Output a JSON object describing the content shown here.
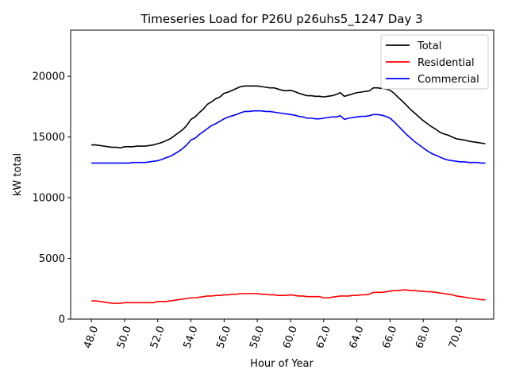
{
  "chart_data": {
    "type": "line",
    "title": "Timeseries Load for P26U p26uhs5_1247  Day 3",
    "xlabel": "Hour of Year",
    "ylabel": "kW total",
    "xlim": [
      46.75,
      72.25
    ],
    "ylim": [
      0,
      23800
    ],
    "xticks": [
      48,
      50,
      52,
      54,
      56,
      58,
      60,
      62,
      64,
      66,
      68,
      70
    ],
    "xtick_labels": [
      "48.0",
      "50.0",
      "52.0",
      "54.0",
      "56.0",
      "58.0",
      "60.0",
      "62.0",
      "64.0",
      "66.0",
      "68.0",
      "70.0"
    ],
    "yticks": [
      0,
      5000,
      10000,
      15000,
      20000
    ],
    "ytick_labels": [
      "0",
      "5000",
      "10000",
      "15000",
      "20000"
    ],
    "legend_position": "top-right",
    "x": [
      48.0,
      48.25,
      48.5,
      48.75,
      49.0,
      49.25,
      49.5,
      49.75,
      50.0,
      50.25,
      50.5,
      50.75,
      51.0,
      51.25,
      51.5,
      51.75,
      52.0,
      52.25,
      52.5,
      52.75,
      53.0,
      53.25,
      53.5,
      53.75,
      54.0,
      54.25,
      54.5,
      54.75,
      55.0,
      55.25,
      55.5,
      55.75,
      56.0,
      56.25,
      56.5,
      56.75,
      57.0,
      57.25,
      57.5,
      57.75,
      58.0,
      58.25,
      58.5,
      58.75,
      59.0,
      59.25,
      59.5,
      59.75,
      60.0,
      60.25,
      60.5,
      60.75,
      61.0,
      61.25,
      61.5,
      61.75,
      62.0,
      62.25,
      62.5,
      62.75,
      63.0,
      63.25,
      63.5,
      63.75,
      64.0,
      64.25,
      64.5,
      64.75,
      65.0,
      65.25,
      65.5,
      65.75,
      66.0,
      66.25,
      66.5,
      66.75,
      67.0,
      67.25,
      67.5,
      67.75,
      68.0,
      68.25,
      68.5,
      68.75,
      69.0,
      69.25,
      69.5,
      69.75,
      70.0,
      70.25,
      70.5,
      70.75,
      71.0,
      71.25,
      71.5,
      71.75
    ],
    "series": [
      {
        "name": "Total",
        "color": "#000000",
        "values": [
          14350,
          14350,
          14300,
          14250,
          14200,
          14150,
          14150,
          14100,
          14200,
          14200,
          14200,
          14250,
          14250,
          14250,
          14300,
          14350,
          14450,
          14550,
          14700,
          14850,
          15100,
          15350,
          15600,
          15950,
          16450,
          16650,
          17000,
          17300,
          17700,
          17900,
          18150,
          18300,
          18600,
          18700,
          18850,
          19000,
          19150,
          19200,
          19200,
          19200,
          19200,
          19150,
          19100,
          19050,
          19050,
          18950,
          18850,
          18800,
          18850,
          18750,
          18600,
          18500,
          18400,
          18400,
          18350,
          18350,
          18300,
          18350,
          18400,
          18500,
          18650,
          18350,
          18450,
          18550,
          18650,
          18700,
          18750,
          18800,
          19050,
          19050,
          19000,
          18950,
          18850,
          18600,
          18250,
          17950,
          17600,
          17250,
          16950,
          16650,
          16350,
          16100,
          15850,
          15650,
          15400,
          15250,
          15150,
          15000,
          14850,
          14800,
          14750,
          14650,
          14600,
          14550,
          14500,
          14450
        ]
      },
      {
        "name": "Residential",
        "color": "#ff0000",
        "values": [
          1500,
          1500,
          1450,
          1400,
          1350,
          1300,
          1300,
          1300,
          1350,
          1350,
          1350,
          1350,
          1350,
          1350,
          1350,
          1350,
          1450,
          1450,
          1450,
          1500,
          1550,
          1600,
          1650,
          1700,
          1750,
          1750,
          1800,
          1850,
          1900,
          1900,
          1950,
          1950,
          2000,
          2000,
          2050,
          2050,
          2100,
          2100,
          2100,
          2100,
          2100,
          2050,
          2050,
          2000,
          2000,
          1950,
          1950,
          1950,
          2000,
          1950,
          1900,
          1900,
          1850,
          1850,
          1850,
          1850,
          1750,
          1750,
          1800,
          1850,
          1900,
          1900,
          1900,
          1950,
          1950,
          2000,
          2000,
          2050,
          2200,
          2200,
          2200,
          2250,
          2300,
          2350,
          2350,
          2400,
          2400,
          2350,
          2350,
          2300,
          2300,
          2250,
          2250,
          2200,
          2150,
          2100,
          2050,
          2000,
          1900,
          1850,
          1800,
          1750,
          1700,
          1650,
          1600,
          1600
        ]
      },
      {
        "name": "Commercial",
        "color": "#0000ff",
        "values": [
          12850,
          12850,
          12850,
          12850,
          12850,
          12850,
          12850,
          12850,
          12850,
          12850,
          12900,
          12900,
          12900,
          12900,
          12950,
          13000,
          13050,
          13150,
          13300,
          13400,
          13600,
          13800,
          14050,
          14350,
          14750,
          14900,
          15200,
          15450,
          15700,
          15950,
          16100,
          16300,
          16500,
          16650,
          16750,
          16850,
          17000,
          17100,
          17100,
          17150,
          17150,
          17150,
          17100,
          17100,
          17050,
          17000,
          16950,
          16900,
          16850,
          16800,
          16700,
          16650,
          16550,
          16550,
          16500,
          16500,
          16550,
          16600,
          16650,
          16650,
          16750,
          16450,
          16550,
          16600,
          16650,
          16700,
          16700,
          16750,
          16850,
          16850,
          16800,
          16700,
          16550,
          16250,
          15900,
          15550,
          15200,
          14900,
          14600,
          14350,
          14100,
          13850,
          13650,
          13500,
          13350,
          13200,
          13100,
          13050,
          13000,
          12950,
          12950,
          12900,
          12900,
          12900,
          12850,
          12850
        ]
      }
    ]
  }
}
